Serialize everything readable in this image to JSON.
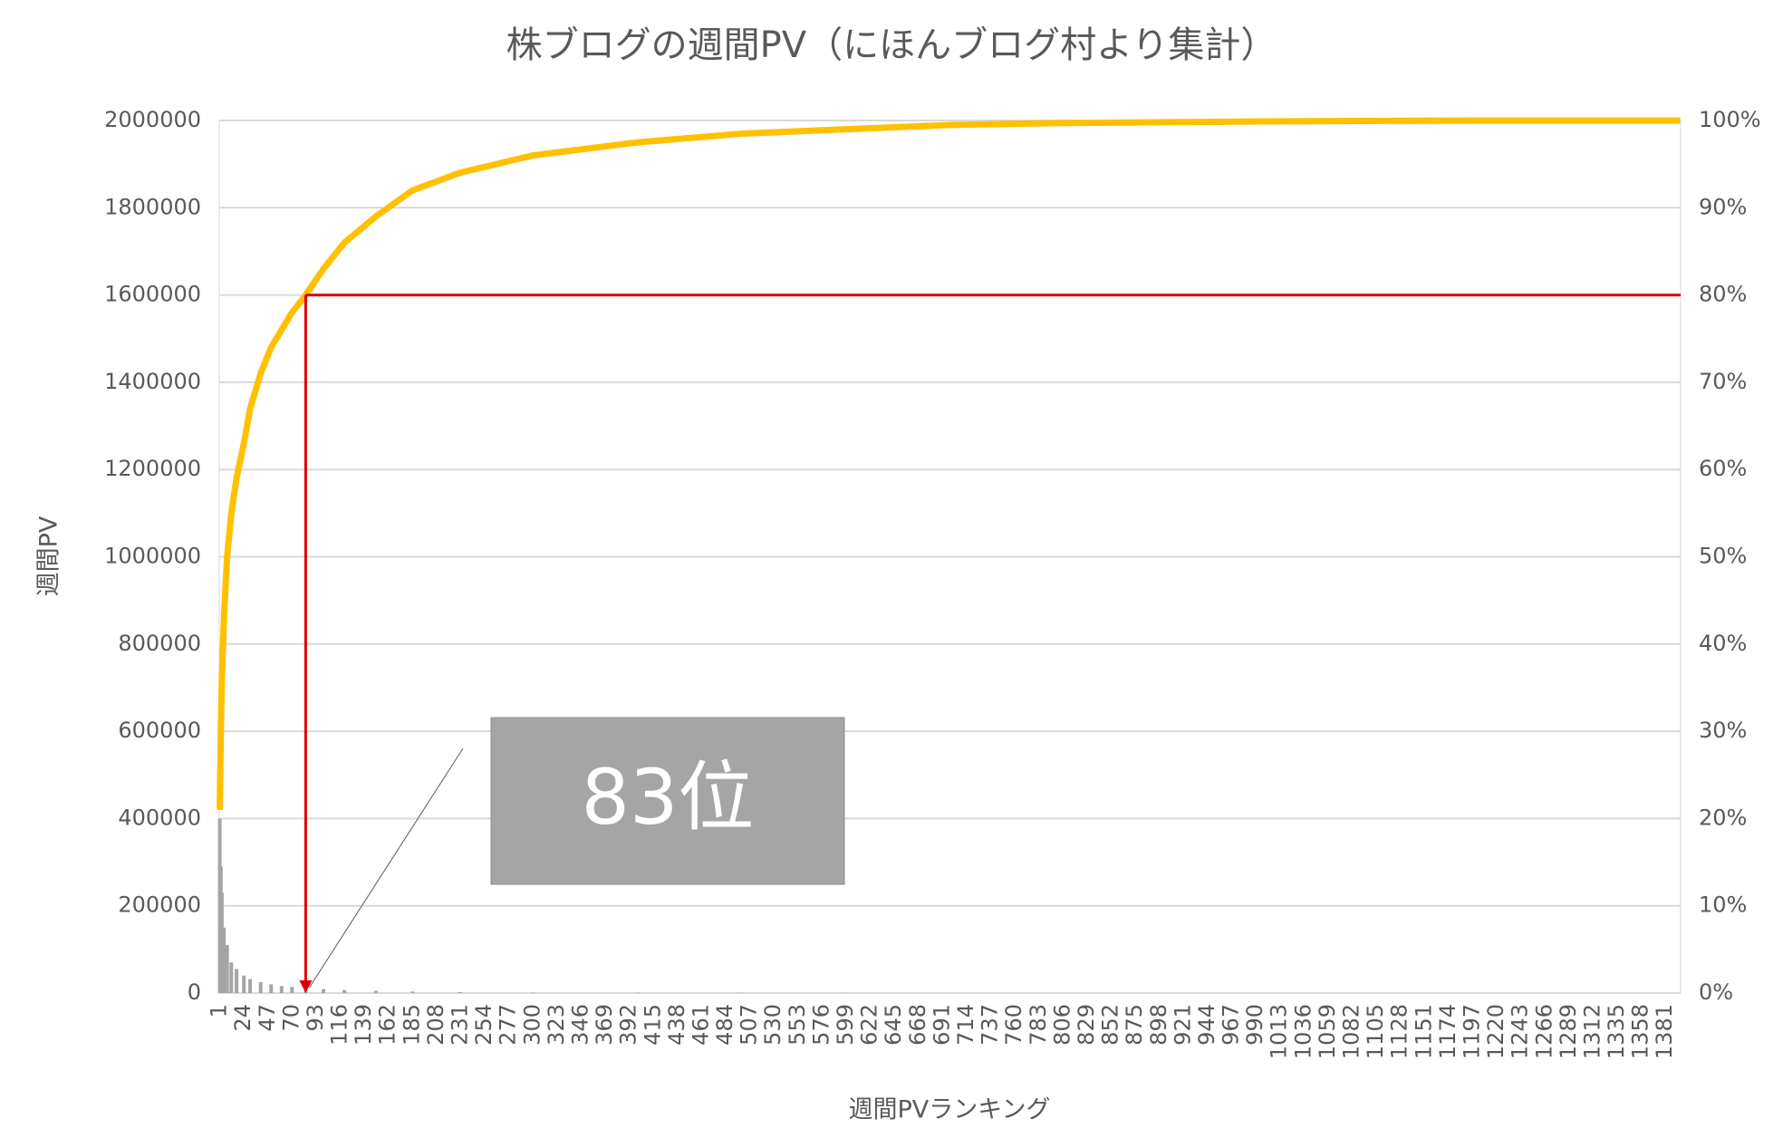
{
  "chart_data": {
    "type": "pareto",
    "title": "株ブログの週間PV（にほんブログ村より集計）",
    "x_label": "週間PVランキング",
    "y_label": "週間PV",
    "annotation": "83位",
    "reference": {
      "x": 83,
      "y2": 80,
      "color": "#e00000"
    },
    "x": [
      1,
      2,
      3,
      5,
      8,
      12,
      17,
      24,
      30,
      40,
      50,
      60,
      70,
      83,
      100,
      120,
      150,
      185,
      230,
      300,
      400,
      500,
      600,
      700,
      800,
      1000,
      1200,
      1395
    ],
    "xlim": [
      0.5,
      1395.5
    ],
    "xticks": [
      1,
      24,
      47,
      70,
      93,
      116,
      139,
      162,
      185,
      208,
      231,
      254,
      277,
      300,
      323,
      346,
      369,
      392,
      415,
      438,
      461,
      484,
      507,
      530,
      553,
      576,
      599,
      622,
      645,
      668,
      691,
      714,
      737,
      760,
      783,
      806,
      829,
      852,
      875,
      898,
      921,
      944,
      967,
      990,
      1013,
      1036,
      1059,
      1082,
      1105,
      1128,
      1151,
      1174,
      1197,
      1220,
      1243,
      1266,
      1289,
      1312,
      1335,
      1358,
      1381
    ],
    "ylim": [
      0,
      2000000
    ],
    "yticks": [
      0,
      200000,
      400000,
      600000,
      800000,
      1000000,
      1200000,
      1400000,
      1600000,
      1800000,
      2000000
    ],
    "y2lim": [
      0,
      100
    ],
    "y2ticks": [
      {
        "value": 0,
        "label": "0%"
      },
      {
        "value": 10,
        "label": "10%"
      },
      {
        "value": 20,
        "label": "20%"
      },
      {
        "value": 30,
        "label": "30%"
      },
      {
        "value": 40,
        "label": "40%"
      },
      {
        "value": 50,
        "label": "50%"
      },
      {
        "value": 60,
        "label": "60%"
      },
      {
        "value": 70,
        "label": "70%"
      },
      {
        "value": 80,
        "label": "80%"
      },
      {
        "value": 90,
        "label": "90%"
      },
      {
        "value": 100,
        "label": "100%"
      }
    ],
    "grid": true,
    "series": [
      {
        "type": "bar",
        "color": "#a5a5a5",
        "values": [
          400000,
          290000,
          230000,
          150000,
          110000,
          70000,
          55000,
          40000,
          32000,
          25000,
          20000,
          16000,
          14000,
          11000,
          9000,
          7000,
          5000,
          3500,
          2000,
          1000,
          500,
          300,
          200,
          100,
          80,
          40,
          20,
          5
        ]
      },
      {
        "type": "line",
        "axis": "y2",
        "color": "#ffc000",
        "values": [
          21,
          30,
          36,
          43,
          50,
          55,
          59,
          63,
          67,
          71,
          74,
          76,
          78,
          80,
          83,
          86,
          89,
          92,
          94,
          96,
          97.5,
          98.5,
          99,
          99.5,
          99.7,
          99.9,
          100,
          100
        ]
      }
    ]
  }
}
